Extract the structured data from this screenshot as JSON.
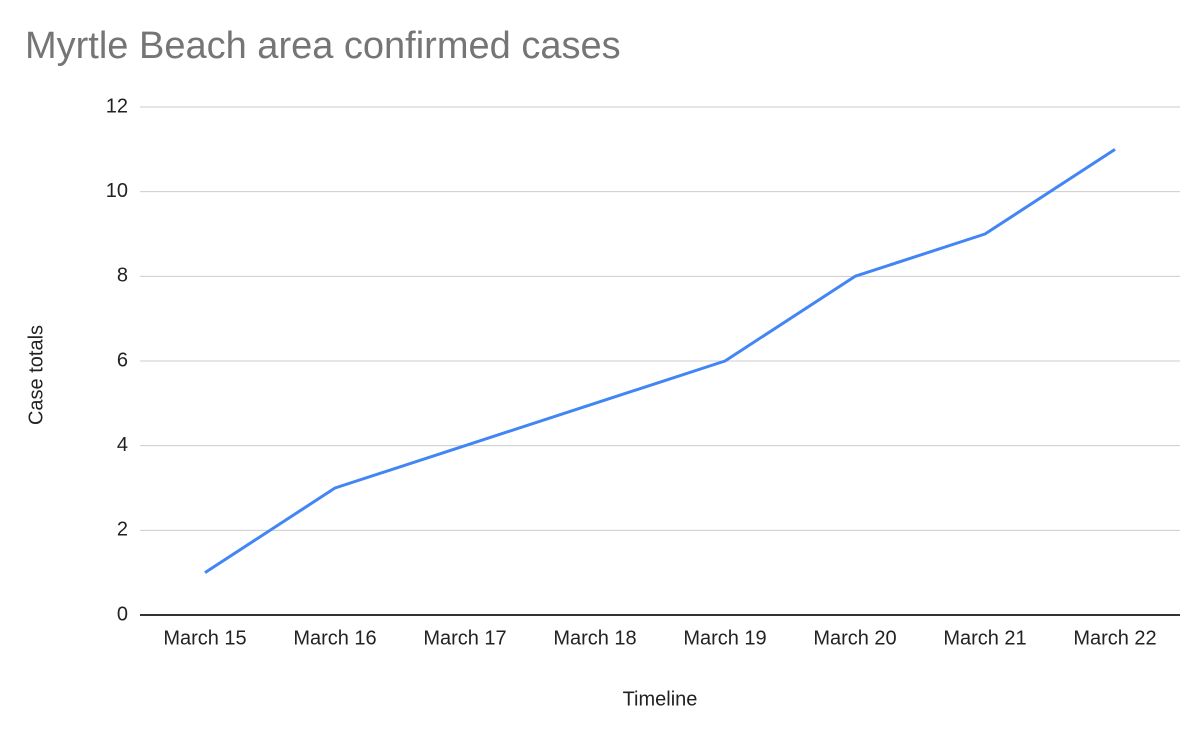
{
  "chart_data": {
    "type": "line",
    "title": "Myrtle Beach area confirmed cases",
    "x_label": "Timeline",
    "y_label": "Case totals",
    "categories": [
      "March 15",
      "March 16",
      "March 17",
      "March 18",
      "March 19",
      "March 20",
      "March 21",
      "March 22"
    ],
    "series": [
      {
        "name": "Case totals",
        "color": "#4285f4",
        "values": [
          1,
          3,
          4,
          5,
          6,
          8,
          9,
          11
        ]
      }
    ],
    "ylim": [
      0,
      12
    ],
    "yticks": [
      0,
      2,
      4,
      6,
      8,
      10,
      12
    ],
    "grid": true
  }
}
